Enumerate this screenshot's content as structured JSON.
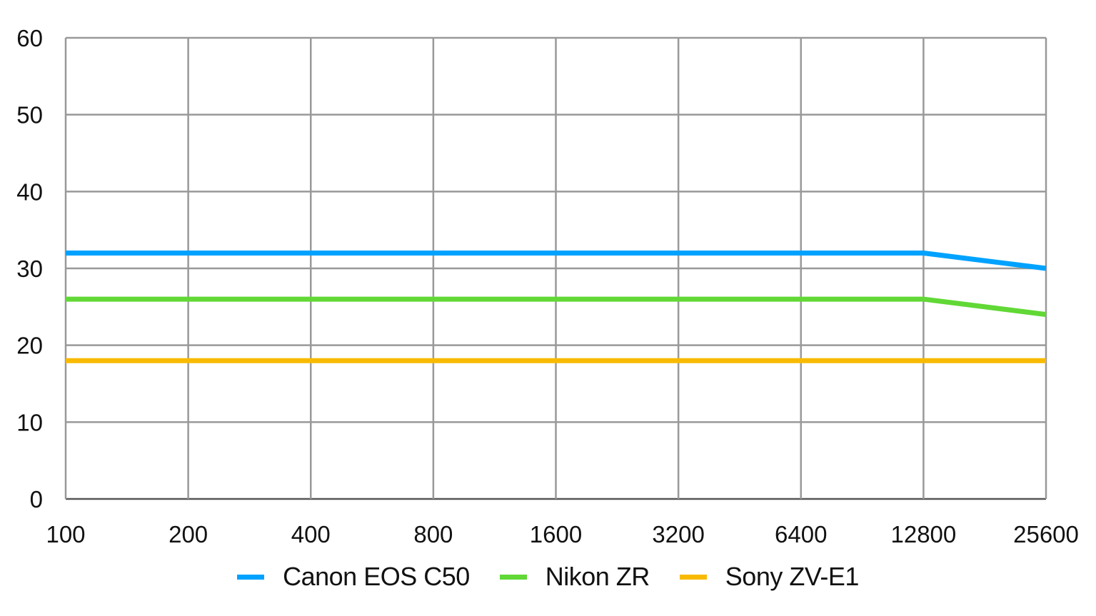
{
  "chart_data": {
    "type": "line",
    "title": "",
    "xlabel": "",
    "ylabel": "",
    "categories": [
      "100",
      "200",
      "400",
      "800",
      "1600",
      "3200",
      "6400",
      "12800",
      "25600"
    ],
    "ylim": [
      0,
      60
    ],
    "yticks": [
      "0",
      "10",
      "20",
      "30",
      "40",
      "50",
      "60"
    ],
    "grid": true,
    "legend_position": "bottom",
    "series": [
      {
        "name": "Canon EOS C50",
        "color": "#00a2ff",
        "values": [
          32,
          32,
          32,
          32,
          32,
          32,
          32,
          32,
          30
        ]
      },
      {
        "name": "Nikon ZR",
        "color": "#61d836",
        "values": [
          26,
          26,
          26,
          26,
          26,
          26,
          26,
          26,
          24
        ]
      },
      {
        "name": "Sony ZV-E1",
        "color": "#f8ba00",
        "values": [
          18,
          18,
          18,
          18,
          18,
          18,
          18,
          18,
          18
        ]
      }
    ]
  },
  "legend": {
    "items": [
      {
        "label": "Canon EOS C50",
        "color": "#00a2ff"
      },
      {
        "label": "Nikon ZR",
        "color": "#61d836"
      },
      {
        "label": "Sony ZV-E1",
        "color": "#f8ba00"
      }
    ]
  }
}
